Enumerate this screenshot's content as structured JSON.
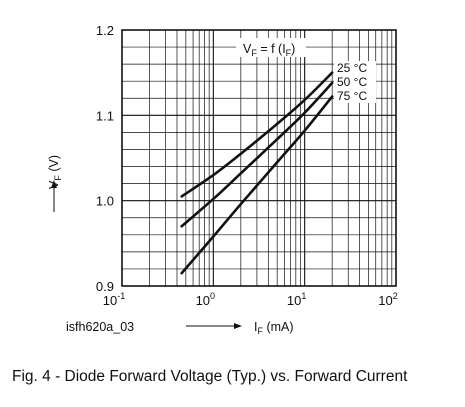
{
  "chart_data": {
    "type": "line",
    "title_main": "V",
    "title_sub": "F",
    "title_mid": " = f (I",
    "title_sub2": "F",
    "title_end": ")",
    "ylabel_main": "V",
    "ylabel_sub": "F",
    "ylabel_unit": " (V)",
    "xlabel_main": "I",
    "xlabel_sub": "F",
    "xlabel_unit": " (mA)",
    "x_scale": "log",
    "xlim": [
      0.1,
      100
    ],
    "ylim": [
      0.9,
      1.2
    ],
    "x_ticks": [
      {
        "value": 0.1,
        "base": "10",
        "exp": "-1"
      },
      {
        "value": 1,
        "base": "10",
        "exp": "0"
      },
      {
        "value": 10,
        "base": "10",
        "exp": "1"
      },
      {
        "value": 100,
        "base": "10",
        "exp": "2"
      }
    ],
    "y_ticks": [
      {
        "value": 0.9,
        "label": "0.9"
      },
      {
        "value": 1.0,
        "label": "1.0"
      },
      {
        "value": 1.1,
        "label": "1.1"
      },
      {
        "value": 1.2,
        "label": "1.2"
      }
    ],
    "grid": true,
    "series": [
      {
        "name": "25 °C",
        "points": [
          [
            0.45,
            1.005
          ],
          [
            1,
            1.03
          ],
          [
            2,
            1.055
          ],
          [
            5,
            1.09
          ],
          [
            10,
            1.118
          ],
          [
            20,
            1.15
          ]
        ]
      },
      {
        "name": "50 °C",
        "points": [
          [
            0.45,
            0.97
          ],
          [
            1,
            1.002
          ],
          [
            2,
            1.032
          ],
          [
            5,
            1.072
          ],
          [
            10,
            1.103
          ],
          [
            20,
            1.138
          ]
        ]
      },
      {
        "name": "75 °C",
        "points": [
          [
            0.45,
            0.915
          ],
          [
            1,
            0.958
          ],
          [
            2,
            0.996
          ],
          [
            5,
            1.045
          ],
          [
            10,
            1.082
          ],
          [
            20,
            1.122
          ]
        ]
      }
    ]
  },
  "figure_code": "isfh620a_03",
  "caption": "Fig. 4 - Diode Forward Voltage (Typ.) vs. Forward Current"
}
